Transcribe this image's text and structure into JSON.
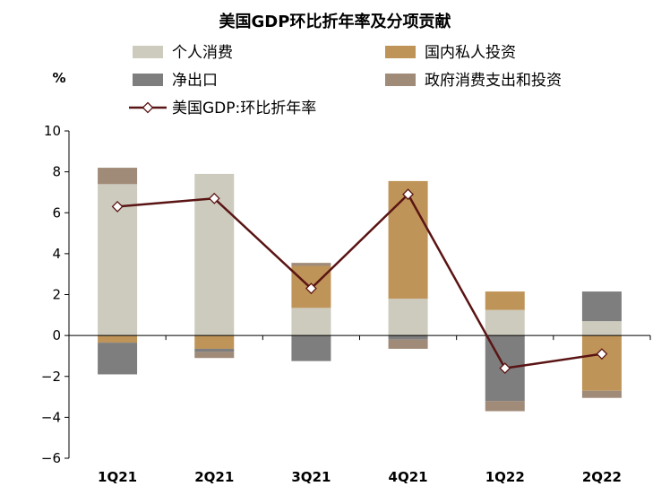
{
  "chart_data": {
    "type": "bar",
    "title": "美国GDP环比折年率及分项贡献",
    "ylabel": "%",
    "ylim": [
      -6,
      10
    ],
    "yticks": [
      10,
      8,
      6,
      4,
      2,
      0,
      -2,
      -4,
      -6
    ],
    "categories": [
      "1Q21",
      "2Q21",
      "3Q21",
      "4Q21",
      "1Q22",
      "2Q22"
    ],
    "series": [
      {
        "name": "个人消费",
        "color": "#cdcbbd",
        "kind": "bar",
        "values": [
          7.4,
          7.9,
          1.35,
          1.8,
          1.25,
          0.7
        ]
      },
      {
        "name": "国内私人投资",
        "color": "#bf9458",
        "kind": "bar",
        "values": [
          -0.35,
          -0.65,
          2.05,
          5.75,
          0.9,
          -2.7
        ]
      },
      {
        "name": "净出口",
        "color": "#7e7e7e",
        "kind": "bar",
        "values": [
          -1.55,
          -0.15,
          -1.25,
          -0.2,
          -3.2,
          1.45
        ]
      },
      {
        "name": "政府消费支出和投资",
        "color": "#a08a78",
        "kind": "bar",
        "values": [
          0.8,
          -0.3,
          0.15,
          -0.45,
          -0.5,
          -0.35
        ]
      },
      {
        "name": "美国GDP:环比折年率",
        "color": "#5a1414",
        "kind": "line",
        "values": [
          6.3,
          6.7,
          2.3,
          6.9,
          -1.6,
          -0.9
        ]
      }
    ],
    "legend_placement": "top",
    "grid": false
  }
}
